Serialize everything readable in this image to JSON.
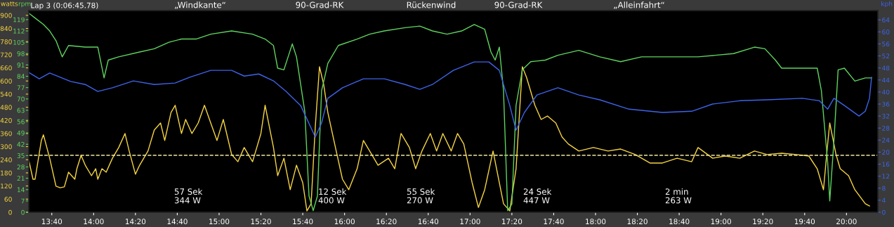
{
  "chart_data": {
    "type": "line",
    "title": "Lap 3 (0:06:45.78)",
    "ylabel": "watts",
    "y2label": "rpm",
    "y3label": "kph",
    "xlim": [
      809,
      1215
    ],
    "xticks": [
      {
        "value": 820,
        "label": "13:40"
      },
      {
        "value": 840,
        "label": "14:00"
      },
      {
        "value": 860,
        "label": "14:20"
      },
      {
        "value": 880,
        "label": "14:40"
      },
      {
        "value": 900,
        "label": "15:00"
      },
      {
        "value": 920,
        "label": "15:20"
      },
      {
        "value": 940,
        "label": "15:40"
      },
      {
        "value": 960,
        "label": "16:00"
      },
      {
        "value": 980,
        "label": "16:20"
      },
      {
        "value": 1000,
        "label": "16:40"
      },
      {
        "value": 1020,
        "label": "17:00"
      },
      {
        "value": 1040,
        "label": "17:20"
      },
      {
        "value": 1060,
        "label": "17:40"
      },
      {
        "value": 1080,
        "label": "18:00"
      },
      {
        "value": 1100,
        "label": "18:20"
      },
      {
        "value": 1120,
        "label": "18:40"
      },
      {
        "value": 1140,
        "label": "19:00"
      },
      {
        "value": 1160,
        "label": "19:20"
      },
      {
        "value": 1180,
        "label": "19:40"
      },
      {
        "value": 1200,
        "label": "20:00"
      }
    ],
    "ylim": [
      0,
      922
    ],
    "yticks": [
      0,
      60,
      120,
      180,
      240,
      300,
      360,
      420,
      480,
      540,
      600,
      660,
      720,
      780,
      840,
      900
    ],
    "y2lim": [
      0,
      124.6
    ],
    "y2ticks": [
      0,
      7,
      14,
      21,
      28,
      35,
      42,
      49,
      56,
      63,
      70,
      77,
      84,
      91,
      98,
      105,
      112,
      119
    ],
    "y3lim": [
      0,
      67.1
    ],
    "y3ticks": [
      0,
      4,
      8,
      12,
      16,
      20,
      24,
      28,
      32,
      36,
      40,
      44,
      48,
      52,
      56,
      60,
      64
    ],
    "grid": false,
    "legend": false,
    "series": [
      {
        "axis": "y2",
        "color": "#5ed35e",
        "x": [
          809,
          812,
          816,
          819,
          822,
          825,
          828,
          836,
          842,
          845,
          847,
          852,
          862,
          869,
          876,
          882,
          889,
          896,
          906,
          916,
          922,
          926,
          928,
          931,
          933,
          935,
          937,
          941,
          943,
          945,
          947,
          949,
          952,
          957,
          966,
          972,
          979,
          989,
          996,
          1002,
          1009,
          1016,
          1022,
          1027,
          1030,
          1032,
          1034,
          1036,
          1038,
          1040,
          1042,
          1045,
          1049,
          1056,
          1062,
          1072,
          1082,
          1092,
          1102,
          1116,
          1129,
          1146,
          1156,
          1161,
          1166,
          1169,
          1179,
          1186,
          1188,
          1191,
          1192,
          1194,
          1196,
          1199,
          1204,
          1209,
          1212
        ],
        "values": [
          123,
          120,
          116,
          112,
          106,
          96,
          103,
          102,
          102,
          83,
          94,
          96,
          99,
          101,
          105,
          107,
          107,
          110,
          112,
          110,
          107,
          103,
          89,
          88,
          96,
          104,
          96,
          62,
          10,
          1,
          10,
          75,
          92,
          103,
          107,
          110,
          112,
          114,
          115,
          112,
          110,
          112,
          116,
          113,
          99,
          94,
          102,
          75,
          1,
          5,
          66,
          88,
          93,
          94,
          97,
          100,
          96,
          93,
          96,
          96,
          96,
          98,
          102,
          101,
          94,
          89,
          89,
          89,
          75,
          31,
          7,
          44,
          88,
          89,
          81,
          83,
          83
        ]
      },
      {
        "axis": "y3",
        "color": "#3d63e8",
        "x": [
          809,
          814,
          819,
          824,
          829,
          836,
          842,
          849,
          859,
          869,
          879,
          886,
          896,
          906,
          912,
          919,
          926,
          932,
          939,
          946,
          949,
          952,
          959,
          969,
          979,
          989,
          996,
          1002,
          1012,
          1022,
          1029,
          1034,
          1039,
          1042,
          1046,
          1052,
          1062,
          1072,
          1082,
          1096,
          1112,
          1126,
          1136,
          1149,
          1162,
          1179,
          1187,
          1191,
          1194,
          1199,
          1206,
          1209,
          1211,
          1212
        ],
        "values": [
          46.5,
          44.4,
          46.3,
          44.9,
          43.5,
          42.5,
          40.2,
          41.4,
          43.7,
          42.5,
          43.0,
          44.9,
          47.2,
          47.2,
          45.3,
          46.0,
          43.7,
          40.2,
          35.5,
          25.0,
          29.7,
          37.9,
          41.4,
          44.4,
          44.4,
          42.5,
          40.9,
          42.5,
          47.2,
          50.0,
          50.0,
          47.2,
          35.5,
          27.3,
          33.2,
          39.0,
          41.4,
          39.0,
          37.4,
          34.3,
          33.2,
          33.6,
          36.0,
          37.1,
          37.4,
          37.9,
          37.1,
          34.3,
          37.9,
          35.5,
          32.0,
          33.6,
          37.9,
          44.9
        ]
      },
      {
        "axis": "y",
        "color": "#f5d442",
        "x": [
          809,
          811,
          812,
          815,
          816,
          819,
          822,
          824,
          826,
          828,
          831,
          832,
          834,
          836,
          839,
          841,
          842,
          844,
          846,
          849,
          852,
          855,
          857,
          860,
          862,
          866,
          869,
          872,
          874,
          877,
          879,
          882,
          884,
          887,
          890,
          893,
          896,
          899,
          902,
          906,
          909,
          912,
          916,
          920,
          922,
          926,
          928,
          931,
          934,
          937,
          940,
          942,
          944,
          946,
          948,
          950,
          952,
          956,
          959,
          962,
          966,
          969,
          972,
          976,
          981,
          984,
          987,
          991,
          994,
          997,
          1001,
          1004,
          1007,
          1011,
          1014,
          1017,
          1021,
          1024,
          1027,
          1031,
          1034,
          1036,
          1039,
          1042,
          1045,
          1047,
          1051,
          1054,
          1057,
          1061,
          1064,
          1067,
          1072,
          1079,
          1086,
          1092,
          1099,
          1106,
          1112,
          1119,
          1126,
          1129,
          1136,
          1142,
          1149,
          1156,
          1162,
          1169,
          1176,
          1182,
          1186,
          1189,
          1191,
          1192,
          1195,
          1197,
          1201,
          1204,
          1209,
          1211
        ],
        "values": [
          238,
          151,
          151,
          328,
          354,
          247,
          119,
          112,
          116,
          183,
          151,
          199,
          260,
          215,
          167,
          199,
          151,
          199,
          183,
          247,
          296,
          360,
          280,
          174,
          215,
          280,
          376,
          408,
          328,
          456,
          489,
          360,
          424,
          360,
          408,
          489,
          408,
          328,
          424,
          264,
          231,
          296,
          231,
          360,
          489,
          296,
          167,
          247,
          103,
          215,
          135,
          6,
          39,
          392,
          665,
          585,
          456,
          280,
          151,
          103,
          199,
          328,
          280,
          215,
          247,
          199,
          360,
          296,
          199,
          280,
          360,
          280,
          360,
          280,
          360,
          312,
          135,
          22,
          103,
          280,
          135,
          39,
          6,
          199,
          665,
          617,
          489,
          424,
          440,
          408,
          344,
          312,
          280,
          296,
          280,
          289,
          264,
          225,
          225,
          247,
          231,
          296,
          247,
          257,
          247,
          280,
          264,
          270,
          264,
          257,
          199,
          103,
          312,
          408,
          264,
          199,
          167,
          103,
          39,
          29
        ]
      }
    ],
    "ref_lines": [
      {
        "axis": "y",
        "value": 260,
        "color": "#f0e6a0",
        "line_style": "dashed"
      }
    ],
    "annotations": [
      "„Windkante“",
      "90-Grad-RK",
      "Rückenwind",
      "90-Grad-RK",
      "„Alleinfahrt“",
      "57 Sek\n344 W",
      "12 Sek\n400 W",
      "55 Sek\n270 W",
      "24 Sek\n447 W",
      "2 min\n263 W"
    ]
  }
}
